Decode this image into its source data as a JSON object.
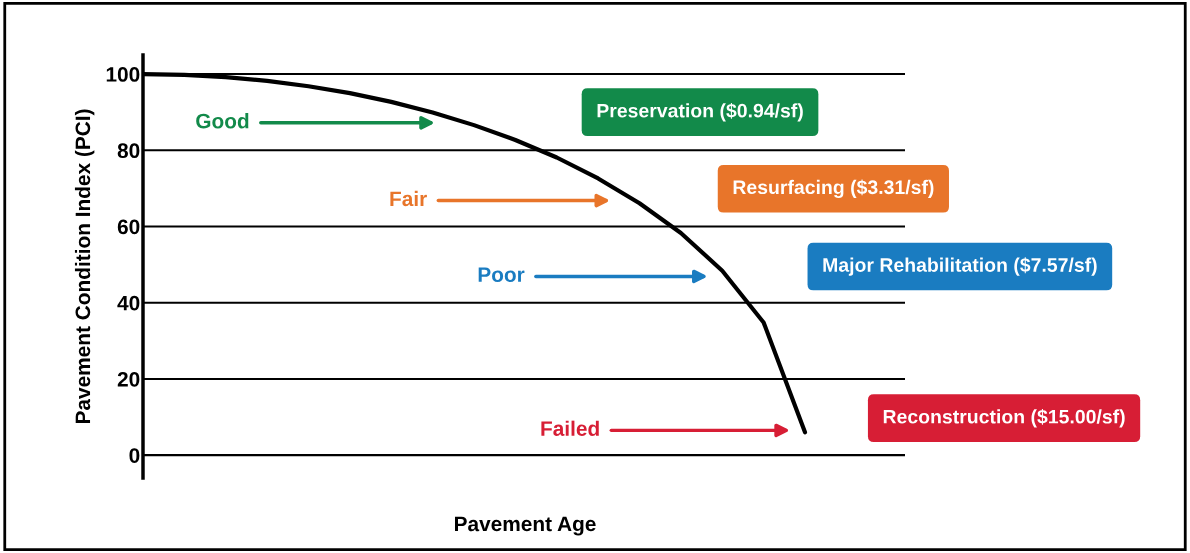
{
  "chart_data": {
    "type": "line",
    "ylabel": "Pavement Condition Index (PCI)",
    "xlabel": "Pavement Age",
    "categories": [
      null,
      null,
      null,
      null,
      null,
      null,
      null,
      null,
      null,
      null,
      null,
      null,
      null,
      null,
      null,
      null,
      null
    ],
    "series": [
      {
        "color": "#000000",
        "values": [
          100,
          99.8,
          99.2,
          98.2,
          96.8,
          95.0,
          92.7,
          89.9,
          86.6,
          82.7,
          78.1,
          72.6,
          66.1,
          58.3,
          48.4,
          34.8,
          6
        ]
      }
    ],
    "ylim": [
      -6,
      105
    ],
    "yticks": [
      0,
      20,
      40,
      60,
      80,
      100
    ],
    "grid": "y",
    "tick_labels": "y",
    "marker": "none",
    "line_style": "solid",
    "annotations": [
      "Good",
      "Fair",
      "Poor",
      "Failed",
      "Preservation ($0.94/sf)",
      "Resurfacing ($3.31/sf)",
      "Major Rehabilitation ($7.57/sf)",
      "Reconstruction ($15.00/sf)"
    ]
  }
}
